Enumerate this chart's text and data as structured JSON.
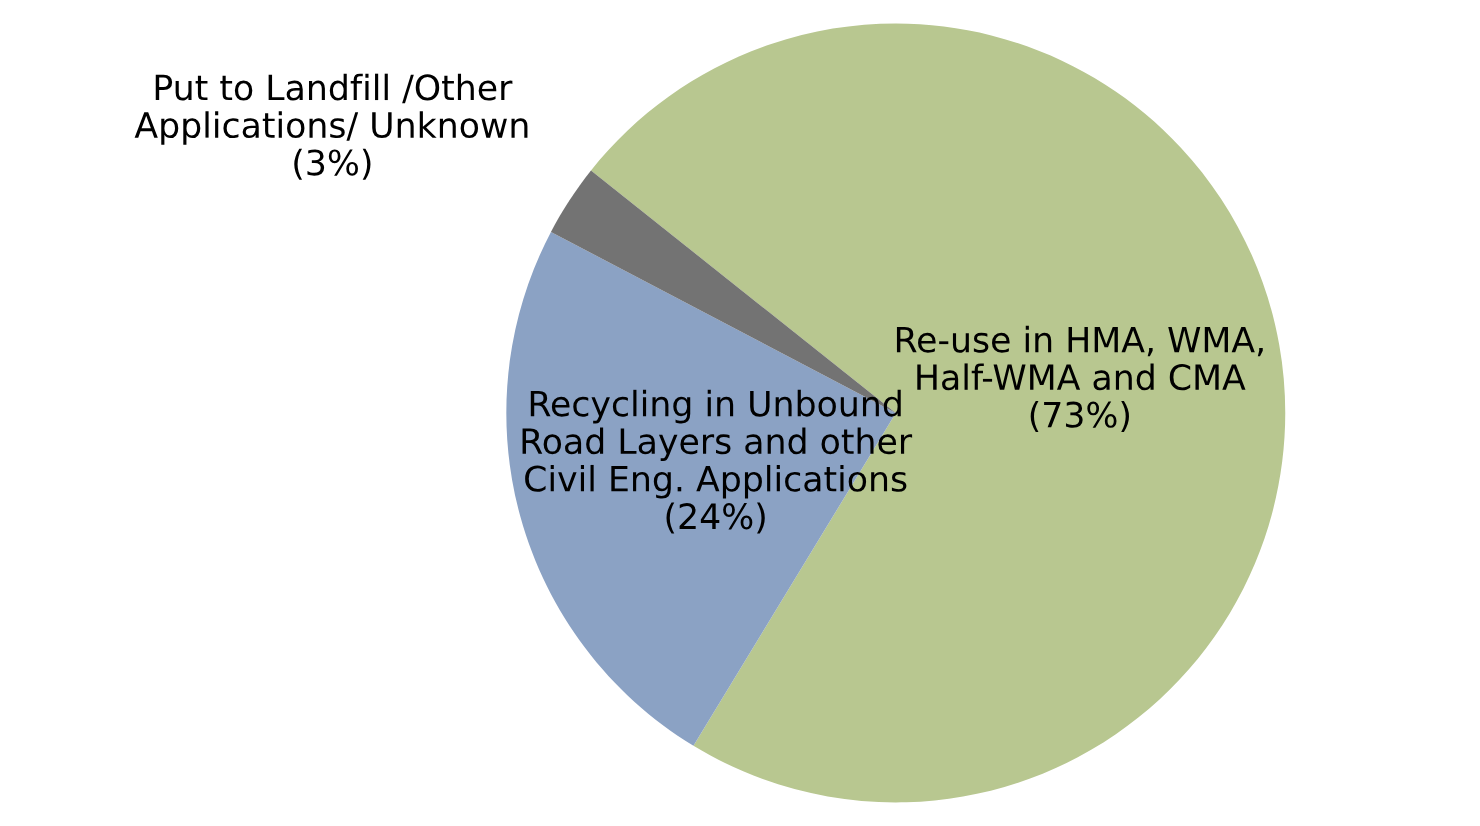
{
  "chart_data": {
    "type": "pie",
    "categories": [
      "Re-use in HMA, WMA,\nHalf-WMA and CMA",
      "Recycling in Unbound\nRoad Layers and other\nCivil Eng. Applications",
      "Put to Landfill /Other\nApplications/ Unknown"
    ],
    "values": [
      73,
      24,
      3
    ],
    "colors": [
      "#b8c790",
      "#8ba2c4",
      "#737373"
    ],
    "value_labels": [
      "(73%)",
      "(24%)",
      "(3%)"
    ]
  }
}
